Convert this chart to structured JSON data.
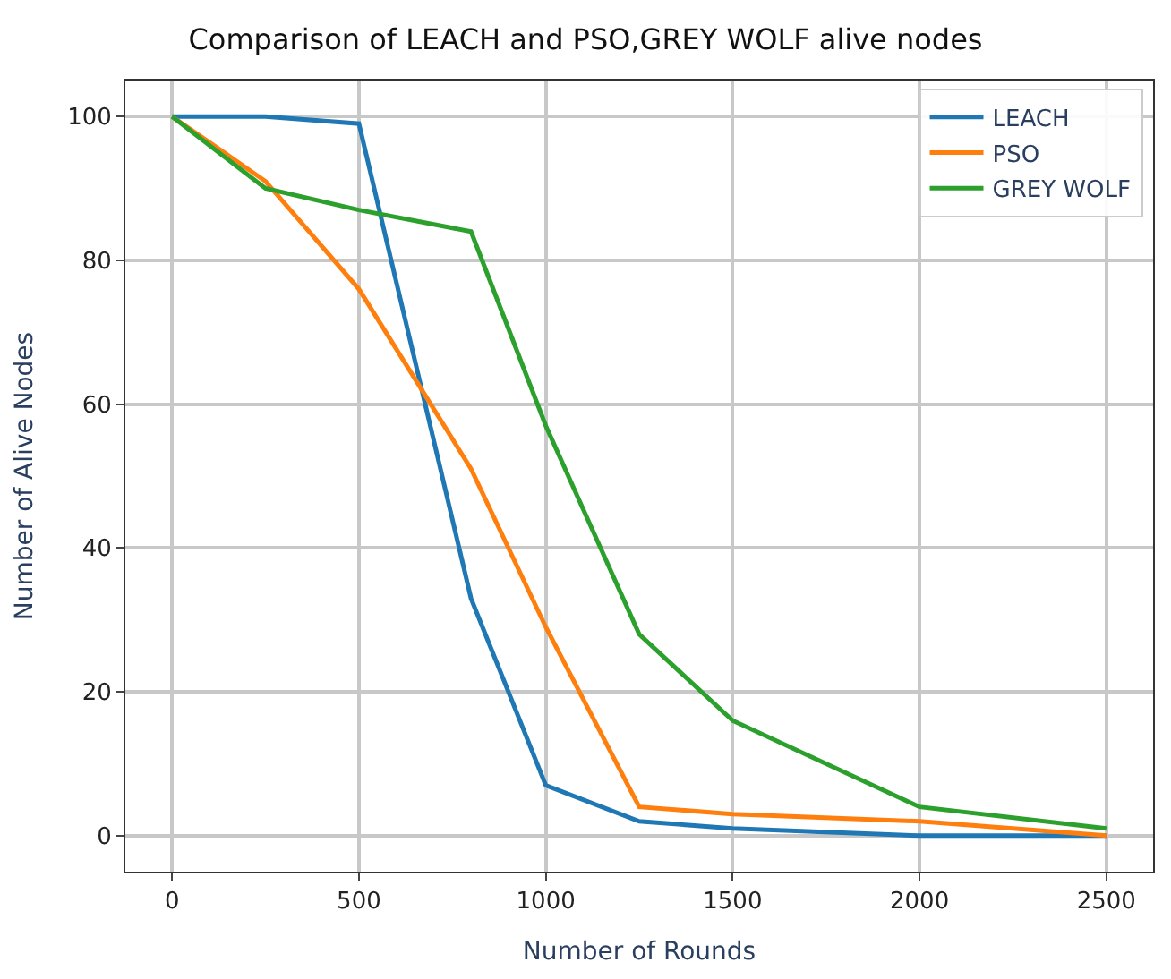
{
  "chart_data": {
    "type": "line",
    "title": "Comparison of LEACH and PSO,GREY WOLF alive nodes",
    "xlabel": "Number of Rounds",
    "ylabel": "Number of Alive Nodes",
    "x": [
      0,
      250,
      500,
      800,
      1000,
      1250,
      1500,
      2000,
      2500
    ],
    "series": [
      {
        "name": "LEACH",
        "color": "#1f77b4",
        "values": [
          100,
          100,
          99,
          33,
          7,
          2,
          1,
          0,
          0
        ]
      },
      {
        "name": "PSO",
        "color": "#ff7f0e",
        "values": [
          100,
          91,
          76,
          51,
          29,
          4,
          3,
          2,
          0
        ]
      },
      {
        "name": "GREY WOLF",
        "color": "#2ca02c",
        "values": [
          100,
          90,
          87,
          84,
          57,
          28,
          16,
          4,
          1
        ]
      }
    ],
    "xlim": [
      -125,
      2625
    ],
    "ylim": [
      -5,
      105
    ],
    "xticks": [
      0,
      500,
      1000,
      1500,
      2000,
      2500
    ],
    "yticks": [
      0,
      20,
      40,
      60,
      80,
      100
    ],
    "grid": true,
    "legend": "top right"
  }
}
